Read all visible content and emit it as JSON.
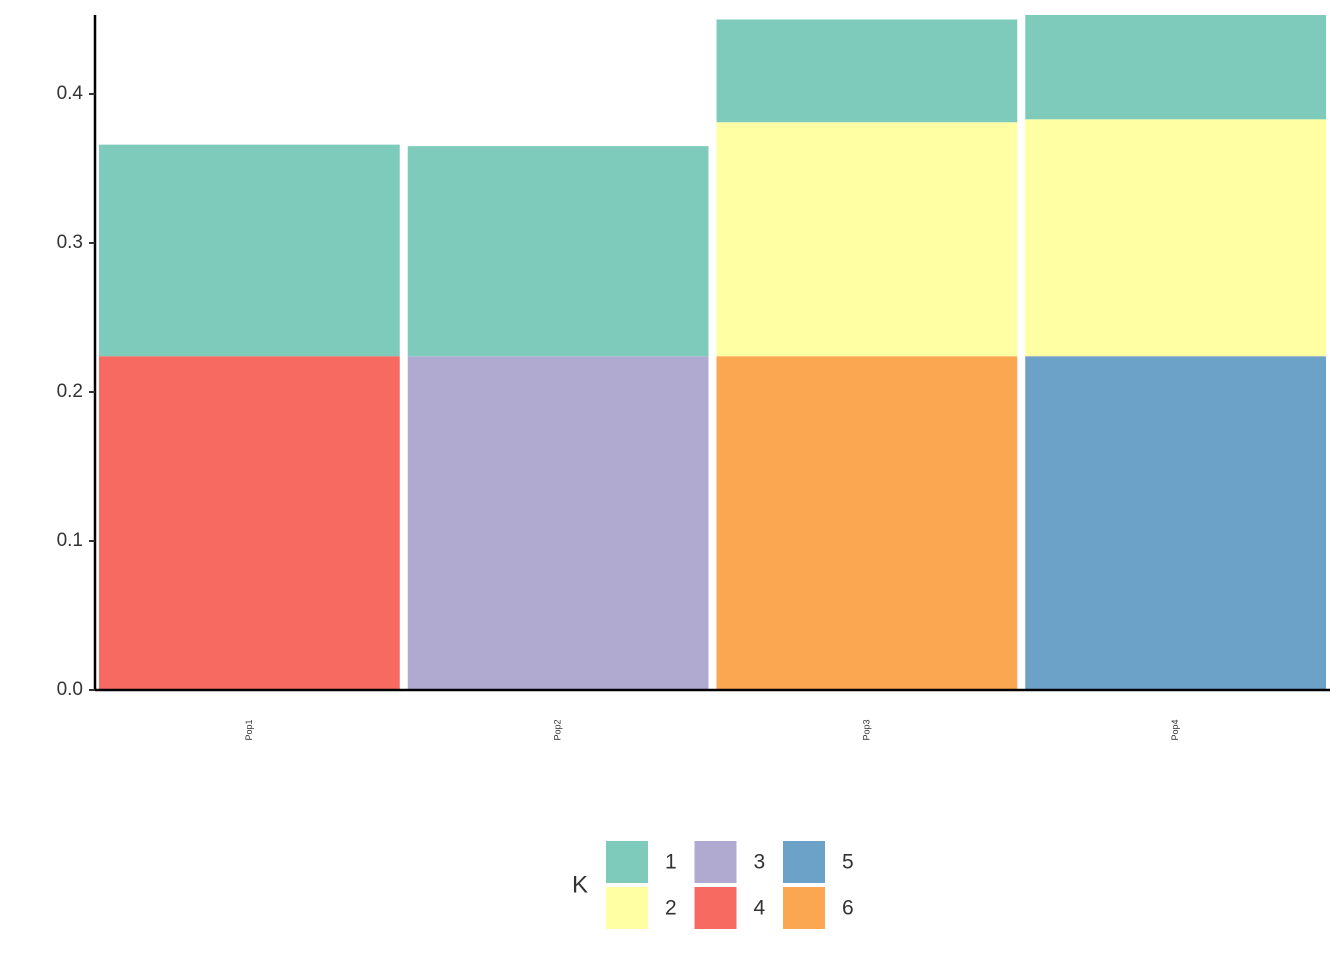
{
  "chart_data": {
    "type": "stacked-bar",
    "categories": [
      "Pop1",
      "Pop2",
      "Pop3",
      "Pop4"
    ],
    "series": [
      {
        "name": "1",
        "color": "#7fcbbb",
        "values": [
          0.142,
          0.141,
          0.069,
          0.07
        ]
      },
      {
        "name": "2",
        "color": "#ffffa3",
        "values": [
          null,
          null,
          0.157,
          0.159
        ]
      },
      {
        "name": "3",
        "color": "#b0aad0",
        "values": [
          null,
          0.224,
          null,
          null
        ]
      },
      {
        "name": "4",
        "color": "#f66a61",
        "values": [
          0.224,
          null,
          null,
          null
        ]
      },
      {
        "name": "5",
        "color": "#6ca1c8",
        "values": [
          null,
          null,
          null,
          0.224
        ]
      },
      {
        "name": "6",
        "color": "#fba650",
        "values": [
          null,
          null,
          0.224,
          null
        ]
      }
    ],
    "ylim": [
      0,
      0.453
    ],
    "yticks": [
      {
        "value": 0,
        "label": "0.0"
      },
      0.1,
      0.2,
      0.3,
      0.4
    ],
    "legend_title": "K",
    "legend_position": "bottom"
  }
}
